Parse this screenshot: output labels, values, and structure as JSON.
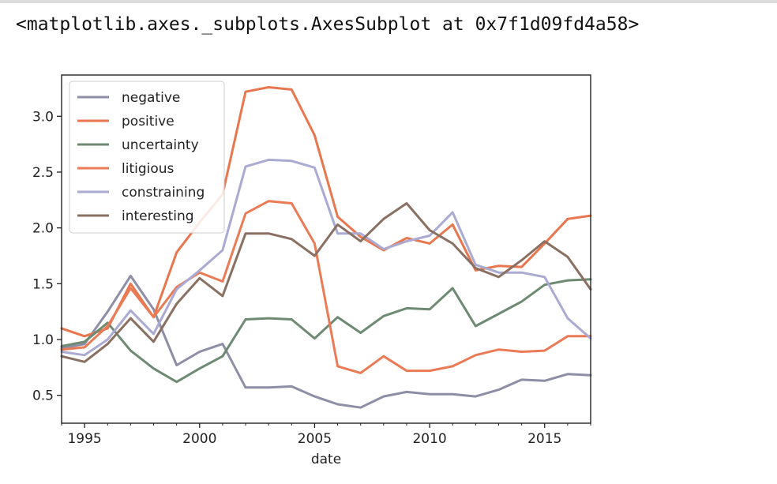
{
  "output_text": "<matplotlib.axes._subplots.AxesSubplot at 0x7f1d09fd4a58>",
  "chart_data": {
    "type": "line",
    "xlabel": "date",
    "ylabel": "",
    "xlim": [
      1994,
      2017
    ],
    "ylim": [
      0.25,
      3.37
    ],
    "x_ticks": [
      1995,
      2000,
      2005,
      2010,
      2015
    ],
    "y_ticks": [
      0.5,
      1.0,
      1.5,
      2.0,
      2.5,
      3.0
    ],
    "y_tick_labels": [
      "0.5",
      "1.0",
      "1.5",
      "2.0",
      "2.5",
      "3.0"
    ],
    "legend_position": "upper-left",
    "grid": false,
    "x": [
      1994,
      1995,
      1996,
      1997,
      1998,
      1999,
      2000,
      2001,
      2002,
      2003,
      2004,
      2005,
      2006,
      2007,
      2008,
      2009,
      2010,
      2011,
      2012,
      2013,
      2014,
      2015,
      2016,
      2017
    ],
    "series": [
      {
        "name": "negative",
        "color": "#8e8ea6",
        "values": [
          0.92,
          0.96,
          1.25,
          1.57,
          1.27,
          0.77,
          0.89,
          0.96,
          0.57,
          0.57,
          0.58,
          0.49,
          0.42,
          0.39,
          0.49,
          0.53,
          0.51,
          0.51,
          0.49,
          0.55,
          0.64,
          0.63,
          0.69,
          0.68
        ]
      },
      {
        "name": "positive",
        "color": "#e8764f",
        "values": [
          1.1,
          1.03,
          1.1,
          1.5,
          1.2,
          1.78,
          2.05,
          2.3,
          3.22,
          3.26,
          3.24,
          2.83,
          2.1,
          1.92,
          1.8,
          1.91,
          1.86,
          2.03,
          1.62,
          1.66,
          1.65,
          1.86,
          2.08,
          2.11
        ]
      },
      {
        "name": "uncertainty",
        "color": "#6e8a72",
        "values": [
          0.94,
          0.98,
          1.15,
          0.9,
          0.74,
          0.62,
          0.74,
          0.85,
          1.18,
          1.19,
          1.18,
          1.01,
          1.2,
          1.06,
          1.21,
          1.28,
          1.27,
          1.46,
          1.12,
          1.23,
          1.34,
          1.49,
          1.53,
          1.54
        ]
      },
      {
        "name": "litigious",
        "color": "#ea7b56",
        "values": [
          0.91,
          0.93,
          1.12,
          1.46,
          1.2,
          1.47,
          1.6,
          1.52,
          2.13,
          2.24,
          2.22,
          1.86,
          0.76,
          0.7,
          0.85,
          0.72,
          0.72,
          0.76,
          0.86,
          0.91,
          0.89,
          0.9,
          1.03,
          1.03
        ]
      },
      {
        "name": "constraining",
        "color": "#aaaad2",
        "values": [
          0.89,
          0.86,
          1.0,
          1.26,
          1.05,
          1.45,
          1.62,
          1.8,
          2.55,
          2.61,
          2.6,
          2.54,
          1.95,
          1.95,
          1.81,
          1.88,
          1.93,
          2.14,
          1.67,
          1.6,
          1.6,
          1.56,
          1.19,
          1.01
        ]
      },
      {
        "name": "interesting",
        "color": "#8a7062",
        "values": [
          0.85,
          0.8,
          0.96,
          1.19,
          0.98,
          1.32,
          1.55,
          1.39,
          1.95,
          1.95,
          1.9,
          1.75,
          2.03,
          1.88,
          2.08,
          2.22,
          1.98,
          1.86,
          1.64,
          1.56,
          1.71,
          1.88,
          1.74,
          1.45
        ]
      }
    ]
  }
}
